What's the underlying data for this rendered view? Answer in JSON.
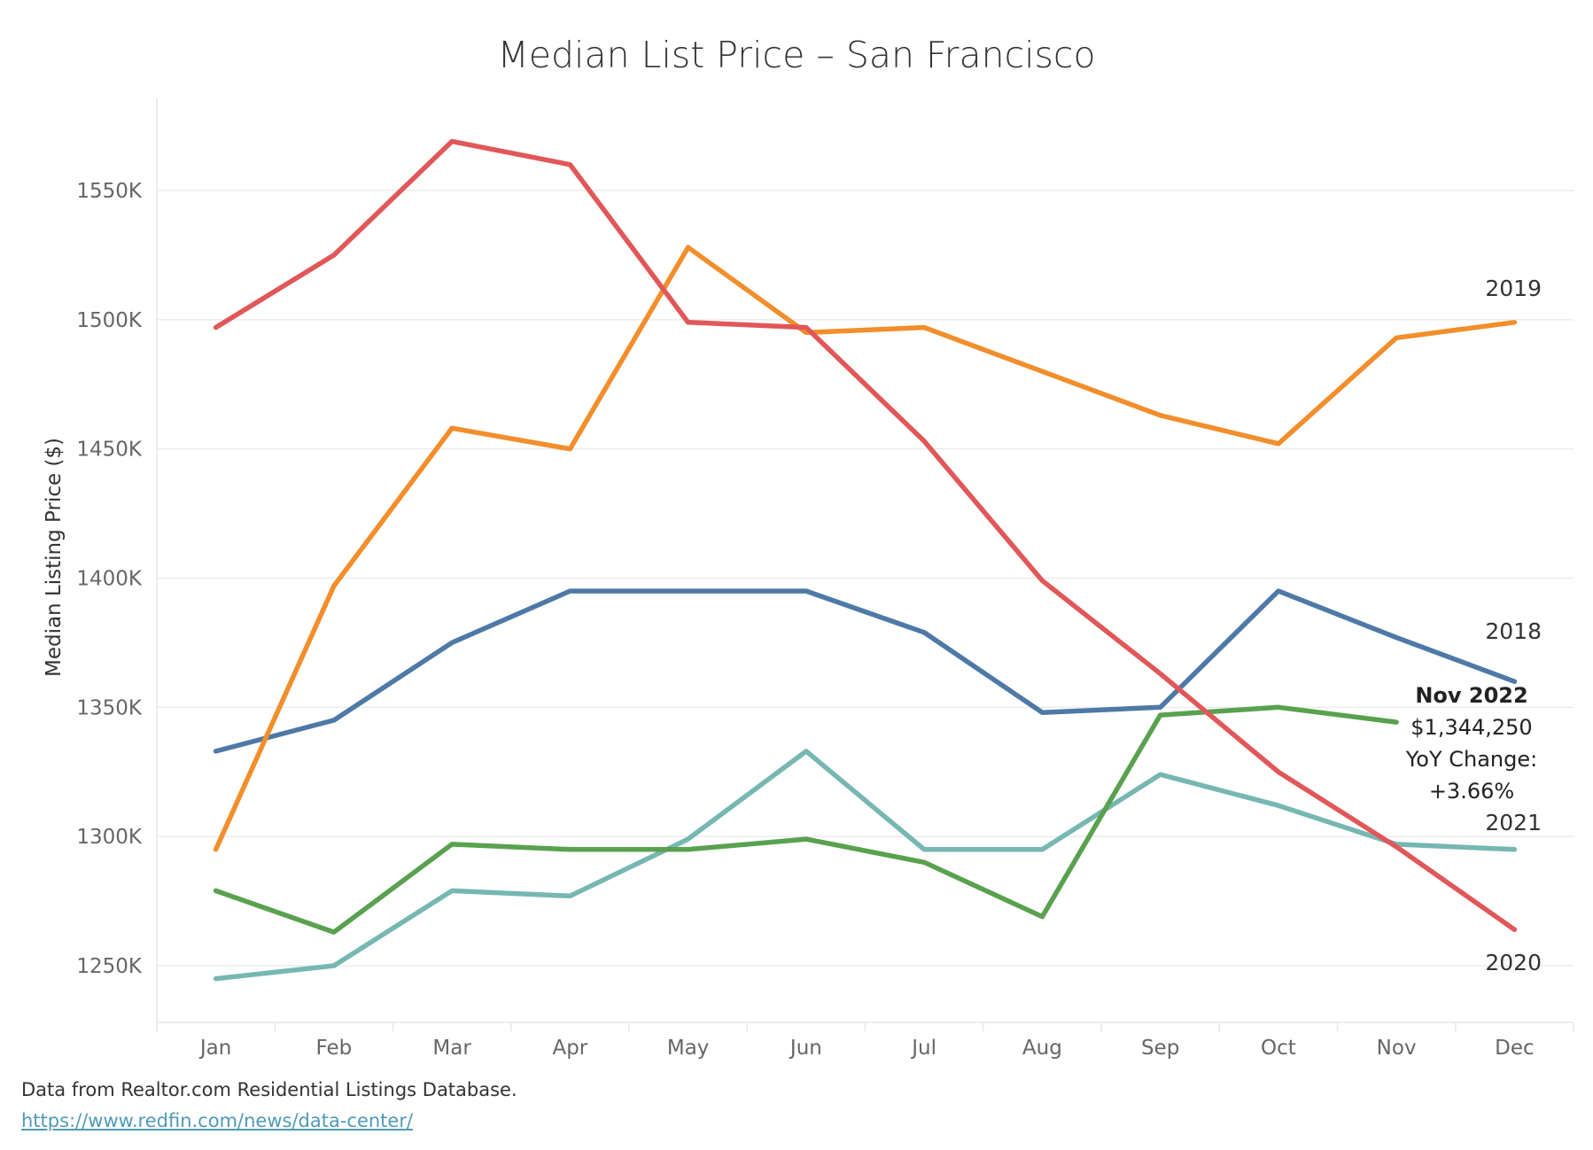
{
  "chart_data": {
    "type": "line",
    "title": "Median List Price – San Francisco",
    "xlabel": "",
    "ylabel": "Median Listing Price ($)",
    "categories": [
      "Jan",
      "Feb",
      "Mar",
      "Apr",
      "May",
      "Jun",
      "Jul",
      "Aug",
      "Sep",
      "Oct",
      "Nov",
      "Dec"
    ],
    "ylim": [
      1215000,
      1585000
    ],
    "y_ticks": [
      1250000,
      1300000,
      1350000,
      1400000,
      1450000,
      1500000,
      1550000
    ],
    "y_tick_labels": [
      "1250K",
      "1300K",
      "1350K",
      "1400K",
      "1450K",
      "1500K",
      "1550K"
    ],
    "grid": "horizontal",
    "series": [
      {
        "name": "2018",
        "color": "#4e79a7",
        "values": [
          1333000,
          1345000,
          1375000,
          1395000,
          1395000,
          1395000,
          1379000,
          1348000,
          1350000,
          1395000,
          1377000,
          1360000
        ]
      },
      {
        "name": "2019",
        "color": "#f28e2b",
        "values": [
          1295000,
          1397000,
          1458000,
          1450000,
          1528000,
          1495000,
          1497000,
          1480000,
          1463000,
          1452000,
          1493000,
          1499000
        ]
      },
      {
        "name": "2020",
        "color": "#e15759",
        "values": [
          1497000,
          1525000,
          1569000,
          1560000,
          1499000,
          1497000,
          1453000,
          1399000,
          1363000,
          1325000,
          1296000,
          1264000
        ]
      },
      {
        "name": "2021",
        "color": "#76b7b2",
        "values": [
          1245000,
          1250000,
          1279000,
          1277000,
          1299000,
          1333000,
          1295000,
          1295000,
          1324000,
          1312000,
          1297000,
          1295000
        ]
      },
      {
        "name": "",
        "color": "#59a14f",
        "values": [
          1279000,
          1263000,
          1297000,
          1295000,
          1295000,
          1299000,
          1290000,
          1269000,
          1347000,
          1350000,
          1344250,
          null
        ]
      }
    ],
    "annotation": {
      "title": "Nov 2022",
      "value": "$1,344,250",
      "label": "YoY Change:",
      "change": "+3.66%"
    }
  },
  "footer": {
    "source": "Data from Realtor.com Residential Listings Database.",
    "link": "https://www.redfin.com/news/data-center/"
  }
}
